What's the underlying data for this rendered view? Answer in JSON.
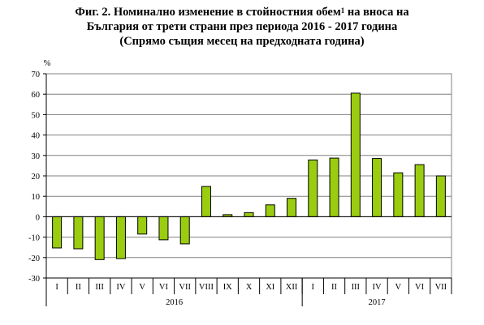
{
  "title": {
    "line1_a": "Фиг. 2. Номинално изменение в стойностния обем",
    "line1_sup": "1",
    "line1_b": " на вноса на",
    "line2": "България от трети страни през периода 2016 - 2017 година",
    "line3": "(Спрямо същия месец на предходната година)"
  },
  "chart_data": {
    "type": "bar",
    "ylabel": "%",
    "ylim": [
      -30,
      70
    ],
    "yticks": [
      70,
      60,
      50,
      40,
      30,
      20,
      10,
      0,
      -10,
      -20,
      -30
    ],
    "grid": true,
    "bar_color": "#9ACD0F",
    "categories": [
      "I",
      "II",
      "III",
      "IV",
      "V",
      "VI",
      "VII",
      "VIII",
      "IX",
      "X",
      "XI",
      "XII",
      "I",
      "II",
      "III",
      "IV",
      "V",
      "VI",
      "VII"
    ],
    "groups": [
      {
        "label": "2016",
        "count": 12
      },
      {
        "label": "2017",
        "count": 7
      }
    ],
    "values": [
      -15.3,
      -15.7,
      -21.0,
      -20.5,
      -8.5,
      -11.3,
      -13.3,
      14.8,
      1.0,
      2.0,
      5.8,
      9.0,
      27.8,
      28.7,
      60.5,
      28.5,
      21.5,
      25.5,
      20.0
    ]
  }
}
